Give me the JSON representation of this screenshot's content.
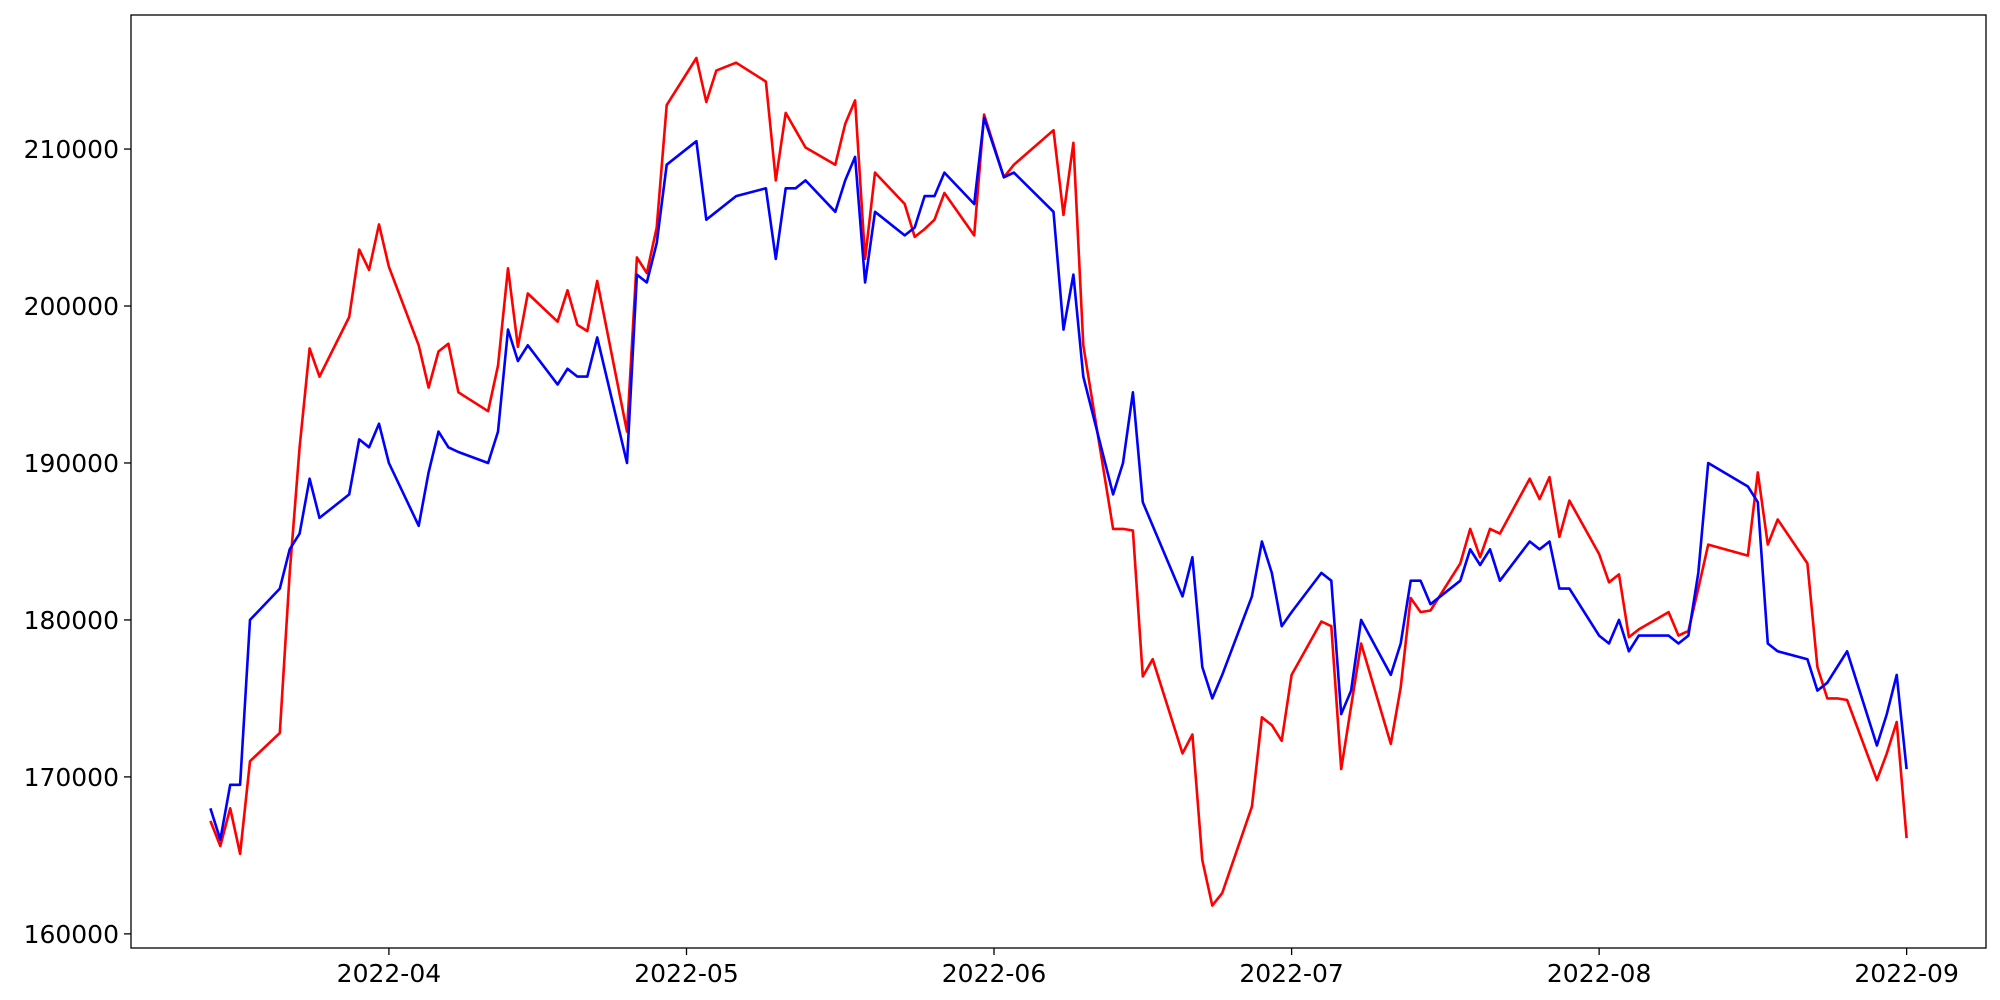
{
  "chart_data": {
    "type": "line",
    "x": [
      "2022-03-14",
      "2022-03-15",
      "2022-03-16",
      "2022-03-17",
      "2022-03-18",
      "2022-03-21",
      "2022-03-22",
      "2022-03-23",
      "2022-03-24",
      "2022-03-25",
      "2022-03-28",
      "2022-03-29",
      "2022-03-30",
      "2022-03-31",
      "2022-04-01",
      "2022-04-04",
      "2022-04-05",
      "2022-04-06",
      "2022-04-07",
      "2022-04-08",
      "2022-04-11",
      "2022-04-12",
      "2022-04-13",
      "2022-04-14",
      "2022-04-15",
      "2022-04-18",
      "2022-04-19",
      "2022-04-20",
      "2022-04-21",
      "2022-04-22",
      "2022-04-25",
      "2022-04-26",
      "2022-04-27",
      "2022-04-28",
      "2022-04-29",
      "2022-05-02",
      "2022-05-03",
      "2022-05-04",
      "2022-05-06",
      "2022-05-09",
      "2022-05-10",
      "2022-05-11",
      "2022-05-12",
      "2022-05-13",
      "2022-05-16",
      "2022-05-17",
      "2022-05-18",
      "2022-05-19",
      "2022-05-20",
      "2022-05-23",
      "2022-05-24",
      "2022-05-25",
      "2022-05-26",
      "2022-05-27",
      "2022-05-30",
      "2022-05-31",
      "2022-06-02",
      "2022-06-03",
      "2022-06-07",
      "2022-06-08",
      "2022-06-09",
      "2022-06-10",
      "2022-06-13",
      "2022-06-14",
      "2022-06-15",
      "2022-06-16",
      "2022-06-17",
      "2022-06-20",
      "2022-06-21",
      "2022-06-22",
      "2022-06-23",
      "2022-06-24",
      "2022-06-27",
      "2022-06-28",
      "2022-06-29",
      "2022-06-30",
      "2022-07-01",
      "2022-07-04",
      "2022-07-05",
      "2022-07-06",
      "2022-07-07",
      "2022-07-08",
      "2022-07-11",
      "2022-07-12",
      "2022-07-13",
      "2022-07-14",
      "2022-07-15",
      "2022-07-18",
      "2022-07-19",
      "2022-07-20",
      "2022-07-21",
      "2022-07-22",
      "2022-07-25",
      "2022-07-26",
      "2022-07-27",
      "2022-07-28",
      "2022-07-29",
      "2022-08-01",
      "2022-08-02",
      "2022-08-03",
      "2022-08-04",
      "2022-08-05",
      "2022-08-08",
      "2022-08-09",
      "2022-08-10",
      "2022-08-11",
      "2022-08-12",
      "2022-08-16",
      "2022-08-17",
      "2022-08-18",
      "2022-08-19",
      "2022-08-22",
      "2022-08-23",
      "2022-08-24",
      "2022-08-25",
      "2022-08-26",
      "2022-08-29",
      "2022-08-30",
      "2022-08-31",
      "2022-09-01"
    ],
    "series": [
      {
        "color": "#ff0000",
        "values": [
          167200,
          165600,
          168000,
          165100,
          171000,
          172800,
          183000,
          191000,
          197300,
          195500,
          199300,
          203600,
          202300,
          205200,
          202500,
          197500,
          194800,
          197100,
          197600,
          194500,
          193300,
          196200,
          202400,
          197400,
          200800,
          199000,
          201000,
          198800,
          198400,
          201600,
          192000,
          203100,
          202100,
          205000,
          212800,
          215800,
          213000,
          215000,
          215500,
          214300,
          208000,
          212300,
          211200,
          210100,
          209000,
          211600,
          213100,
          203000,
          208500,
          206500,
          204400,
          204900,
          205500,
          207200,
          204500,
          212200,
          208200,
          209000,
          211200,
          205800,
          210400,
          197500,
          185800,
          185800,
          185700,
          176400,
          177500,
          171500,
          172700,
          164700,
          161800,
          162600,
          168100,
          173800,
          173300,
          172300,
          176500,
          179900,
          179600,
          170500,
          174500,
          178500,
          172100,
          175700,
          181400,
          180500,
          180600,
          183600,
          185800,
          184000,
          185800,
          185500,
          189000,
          187700,
          189100,
          185300,
          187600,
          184200,
          182400,
          182900,
          178900,
          179400,
          180500,
          179000,
          179300,
          182000,
          184800,
          184100,
          189400,
          184800,
          186400,
          183600,
          177000,
          175000,
          175000,
          174900,
          169800,
          171500,
          173500,
          166100
        ]
      },
      {
        "color": "#0000ff",
        "values": [
          168000,
          166000,
          169500,
          169500,
          180000,
          182000,
          184500,
          185500,
          189000,
          186500,
          188000,
          191500,
          191000,
          192500,
          190000,
          186000,
          189400,
          192000,
          191000,
          190700,
          190000,
          192000,
          198500,
          196500,
          197500,
          195000,
          196000,
          195500,
          195500,
          198000,
          190000,
          202000,
          201500,
          204000,
          209000,
          210500,
          205500,
          206000,
          207000,
          207500,
          203000,
          207500,
          207500,
          208000,
          206000,
          208000,
          209500,
          201500,
          206000,
          204500,
          205000,
          207000,
          207000,
          208500,
          206500,
          212000,
          208200,
          208500,
          206000,
          198500,
          202000,
          195500,
          188000,
          190000,
          194500,
          187500,
          186000,
          181500,
          184000,
          177000,
          175000,
          176500,
          181500,
          185000,
          183000,
          179600,
          180500,
          183000,
          182500,
          174000,
          175500,
          180000,
          176500,
          178500,
          182500,
          182500,
          181000,
          182500,
          184500,
          183500,
          184500,
          182500,
          185000,
          184500,
          185000,
          182000,
          182000,
          179000,
          178500,
          180000,
          178000,
          179000,
          179000,
          178500,
          179000,
          183000,
          190000,
          188500,
          187500,
          178500,
          178000,
          177500,
          175500,
          176000,
          177000,
          178000,
          172000,
          174000,
          176500,
          170500
        ]
      }
    ],
    "xlim": [
      "2022-03-06",
      "2022-09-09"
    ],
    "xticks": [
      "2022-04",
      "2022-05",
      "2022-06",
      "2022-07",
      "2022-08",
      "2022-09"
    ],
    "ylim": [
      159100,
      218540
    ],
    "yticks": [
      160000,
      170000,
      180000,
      190000,
      200000,
      210000
    ]
  }
}
